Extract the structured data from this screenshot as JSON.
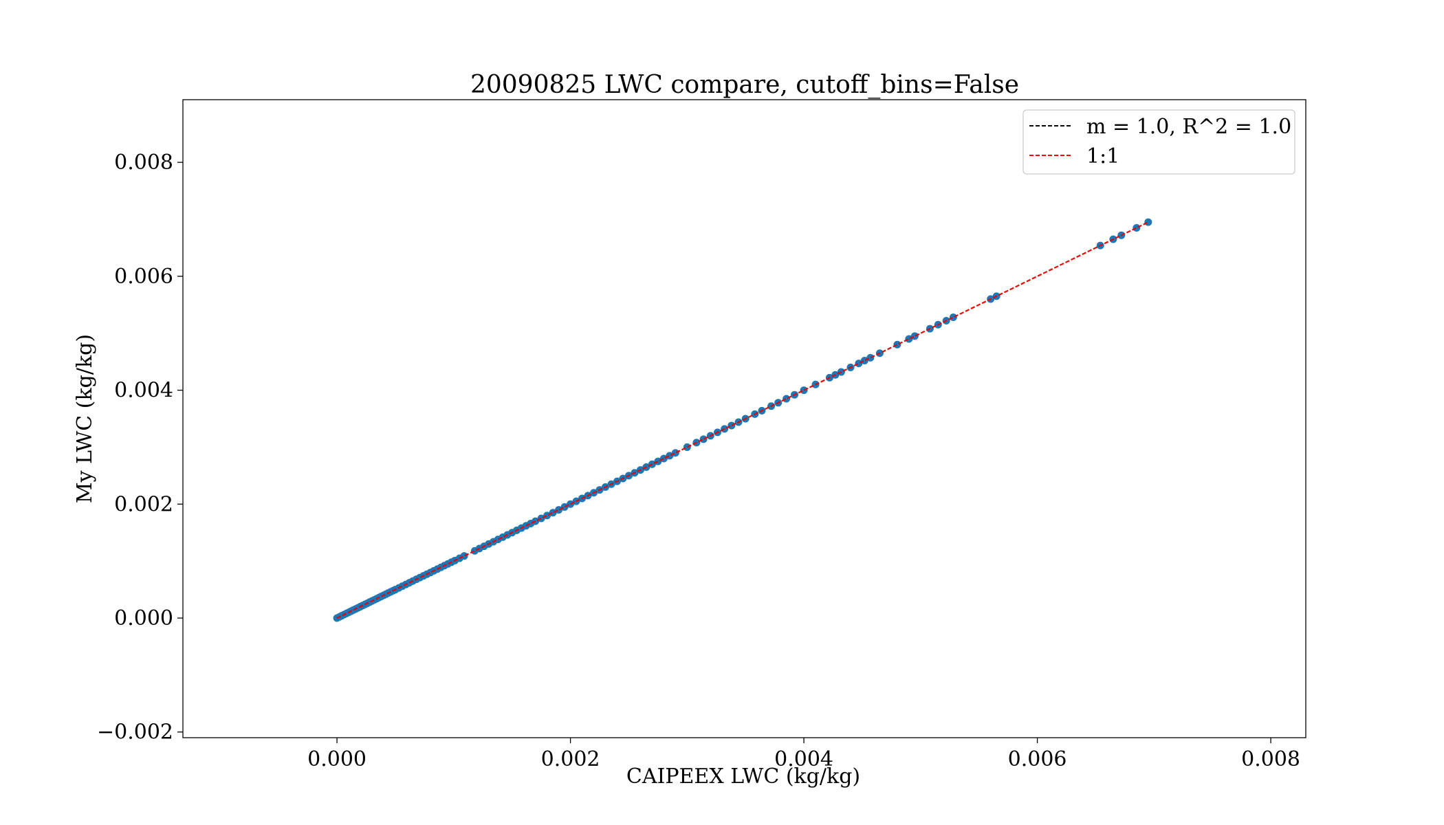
{
  "chart_data": {
    "type": "scatter",
    "title": "20090825 LWC compare, cutoff_bins=False",
    "xlabel": "CAIPEEX LWC (kg/kg)",
    "ylabel": "My LWC (kg/kg)",
    "xlim": [
      -0.00132,
      0.0083
    ],
    "ylim": [
      -0.0021,
      0.0091
    ],
    "xticks": [
      0.0,
      0.002,
      0.004,
      0.006,
      0.008
    ],
    "xtick_labels": [
      "0.000",
      "0.002",
      "0.004",
      "0.006",
      "0.008"
    ],
    "yticks": [
      -0.002,
      0.0,
      0.002,
      0.004,
      0.006,
      0.008
    ],
    "ytick_labels": [
      "−0.002",
      "0.000",
      "0.002",
      "0.004",
      "0.006",
      "0.008"
    ],
    "grid": false,
    "legend_position": "top-right",
    "legend": [
      {
        "label": "m = 1.0, R^2 = 1.0",
        "color": "#000000",
        "style": "dashed"
      },
      {
        "label": "1:1",
        "color": "#ff0000",
        "style": "dashed"
      }
    ],
    "lines": [
      {
        "name": "m = 1.0, R^2 = 1.0",
        "x": [
          0.0,
          0.00695
        ],
        "y": [
          0.0,
          0.00695
        ],
        "color": "#000000",
        "style": "dashed"
      },
      {
        "name": "1:1",
        "x": [
          0.0,
          0.00695
        ],
        "y": [
          0.0,
          0.00695
        ],
        "color": "#ff0000",
        "style": "dashed"
      }
    ],
    "points": {
      "color": "#1f77b4",
      "x": [
        0.0,
        2e-05,
        4e-05,
        6e-05,
        8e-05,
        0.0001,
        0.00012,
        0.00014,
        0.00016,
        0.00018,
        0.0002,
        0.00022,
        0.00024,
        0.00026,
        0.00028,
        0.0003,
        0.00032,
        0.00034,
        0.00036,
        0.00038,
        0.0004,
        0.00042,
        0.00044,
        0.00046,
        0.00048,
        0.0005,
        0.00053,
        0.00056,
        0.00059,
        0.00062,
        0.00065,
        0.00068,
        0.00071,
        0.00074,
        0.00077,
        0.0008,
        0.00083,
        0.00086,
        0.00089,
        0.00092,
        0.00095,
        0.00098,
        0.00101,
        0.00105,
        0.00109,
        0.00118,
        0.00122,
        0.00126,
        0.0013,
        0.00134,
        0.00138,
        0.00142,
        0.00146,
        0.0015,
        0.00154,
        0.00158,
        0.00162,
        0.00166,
        0.0017,
        0.00175,
        0.0018,
        0.00185,
        0.0019,
        0.00195,
        0.002,
        0.00205,
        0.0021,
        0.00215,
        0.0022,
        0.00225,
        0.0023,
        0.00235,
        0.0024,
        0.00245,
        0.0025,
        0.00255,
        0.0026,
        0.00265,
        0.0027,
        0.00275,
        0.0028,
        0.00285,
        0.0029,
        0.003,
        0.00308,
        0.00314,
        0.0032,
        0.00326,
        0.00332,
        0.00338,
        0.00344,
        0.0035,
        0.00358,
        0.00364,
        0.00372,
        0.00378,
        0.00385,
        0.00392,
        0.004,
        0.0041,
        0.00422,
        0.00427,
        0.00432,
        0.0044,
        0.00447,
        0.00452,
        0.00457,
        0.00465,
        0.0048,
        0.0049,
        0.00495,
        0.00508,
        0.00515,
        0.00522,
        0.00528,
        0.0056,
        0.00565,
        0.00654,
        0.00665,
        0.00672,
        0.00685,
        0.00695
      ],
      "y": [
        0.0,
        2e-05,
        4e-05,
        6e-05,
        8e-05,
        0.0001,
        0.00012,
        0.00014,
        0.00016,
        0.00018,
        0.0002,
        0.00022,
        0.00024,
        0.00026,
        0.00028,
        0.0003,
        0.00032,
        0.00034,
        0.00036,
        0.00038,
        0.0004,
        0.00042,
        0.00044,
        0.00046,
        0.00048,
        0.0005,
        0.00053,
        0.00056,
        0.00059,
        0.00062,
        0.00065,
        0.00068,
        0.00071,
        0.00074,
        0.00077,
        0.0008,
        0.00083,
        0.00086,
        0.00089,
        0.00092,
        0.00095,
        0.00098,
        0.00101,
        0.00105,
        0.00109,
        0.00118,
        0.00122,
        0.00126,
        0.0013,
        0.00134,
        0.00138,
        0.00142,
        0.00146,
        0.0015,
        0.00154,
        0.00158,
        0.00162,
        0.00166,
        0.0017,
        0.00175,
        0.0018,
        0.00185,
        0.0019,
        0.00195,
        0.002,
        0.00205,
        0.0021,
        0.00215,
        0.0022,
        0.00225,
        0.0023,
        0.00235,
        0.0024,
        0.00245,
        0.0025,
        0.00255,
        0.0026,
        0.00265,
        0.0027,
        0.00275,
        0.0028,
        0.00285,
        0.0029,
        0.003,
        0.00308,
        0.00314,
        0.0032,
        0.00326,
        0.00332,
        0.00338,
        0.00344,
        0.0035,
        0.00358,
        0.00364,
        0.00372,
        0.00378,
        0.00385,
        0.00392,
        0.004,
        0.0041,
        0.00422,
        0.00427,
        0.00432,
        0.0044,
        0.00447,
        0.00452,
        0.00457,
        0.00465,
        0.0048,
        0.0049,
        0.00495,
        0.00508,
        0.00515,
        0.00522,
        0.00528,
        0.0056,
        0.00565,
        0.00654,
        0.00665,
        0.00672,
        0.00685,
        0.00695
      ]
    }
  }
}
